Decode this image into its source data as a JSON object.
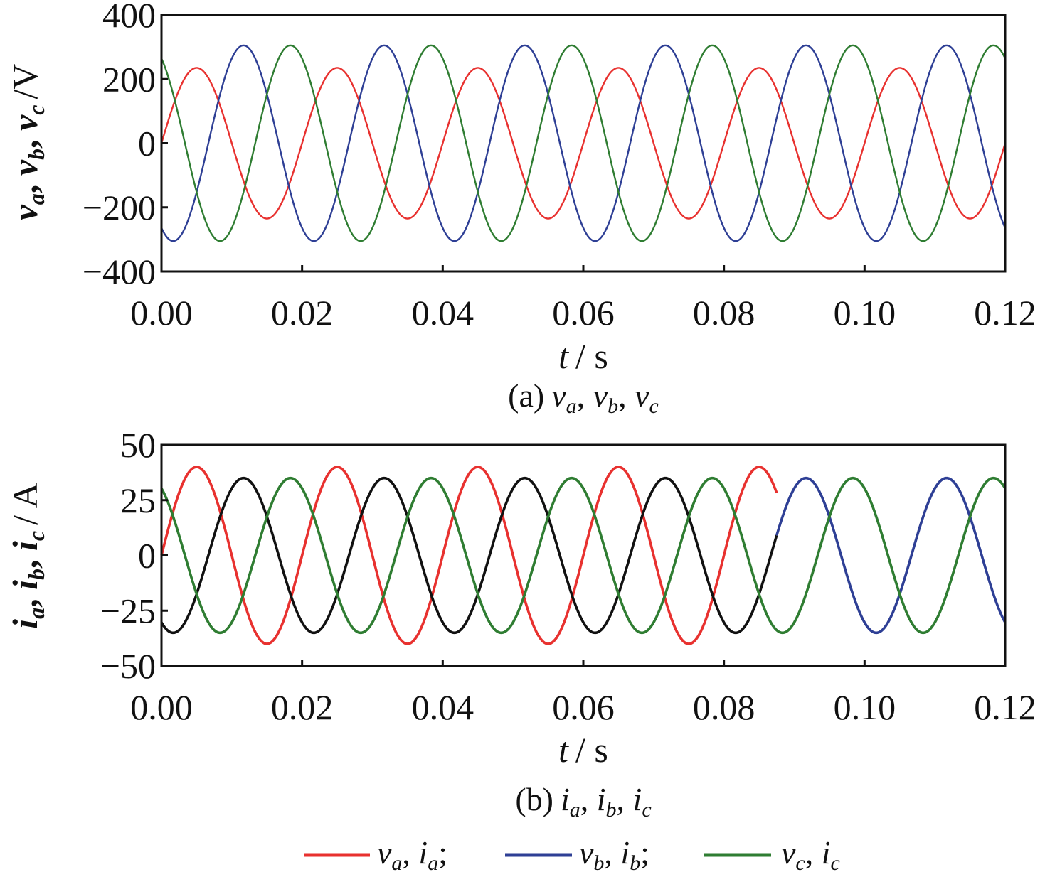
{
  "chart_data": [
    {
      "type": "line",
      "panel": "a",
      "caption_prefix": "(a)",
      "caption_vars": [
        "v",
        "a",
        "v",
        "b",
        "v",
        "c"
      ],
      "xlabel_var": "t",
      "xlabel_unit": "/ s",
      "ylabel_vars": [
        "v",
        "a",
        "v",
        "b",
        "v",
        "c"
      ],
      "ylabel_unit": "/V",
      "xlim": [
        0,
        0.12
      ],
      "ylim": [
        -400,
        400
      ],
      "xticks": [
        "0.00",
        "0.02",
        "0.04",
        "0.06",
        "0.08",
        "0.10",
        "0.12"
      ],
      "yticks": [
        "400",
        "200",
        "0",
        "−200",
        "−400"
      ],
      "ytick_values": [
        400,
        200,
        0,
        -200,
        -400
      ],
      "series": [
        {
          "name": "va",
          "color": "#e8312f",
          "amplitude": 235,
          "frequency": 50,
          "phase_deg": 0,
          "t_end": 0.12
        },
        {
          "name": "vb",
          "color": "#2e3f95",
          "amplitude": 305,
          "frequency": 50,
          "phase_deg": -120,
          "t_end": 0.12
        },
        {
          "name": "vc",
          "color": "#2f7d32",
          "amplitude": 305,
          "frequency": 50,
          "phase_deg": 120,
          "t_end": 0.12
        }
      ]
    },
    {
      "type": "line",
      "panel": "b",
      "caption_prefix": "(b)",
      "caption_vars": [
        "i",
        "a",
        "i",
        "b",
        "i",
        "c"
      ],
      "xlabel_var": "t",
      "xlabel_unit": "/ s",
      "ylabel_vars": [
        "i",
        "a",
        "i",
        "b",
        "i",
        "c"
      ],
      "ylabel_unit": "/ A",
      "xlim": [
        0,
        0.12
      ],
      "ylim": [
        -50,
        50
      ],
      "xticks": [
        "0.00",
        "0.02",
        "0.04",
        "0.06",
        "0.08",
        "0.10",
        "0.12"
      ],
      "yticks": [
        "50",
        "25",
        "0",
        "−25",
        "−50"
      ],
      "ytick_values": [
        50,
        25,
        0,
        -25,
        -50
      ],
      "series": [
        {
          "name": "ia",
          "color": "#e8312f",
          "amplitude": 40,
          "frequency": 50,
          "phase_deg": 0,
          "t_end": 0.0875
        },
        {
          "name": "ib (t < 0.0875 s)",
          "color": "#111111",
          "amplitude": 35,
          "frequency": 50,
          "phase_deg": -120,
          "t_end": 0.0875
        },
        {
          "name": "ib (t ≥ 0.0875 s)",
          "color": "#2e3f95",
          "amplitude": 35,
          "frequency": 50,
          "phase_deg": -120,
          "t_start": 0.0875,
          "t_end": 0.12
        },
        {
          "name": "ic",
          "color": "#2f7d32",
          "amplitude": 35,
          "frequency": 50,
          "phase_deg": 120,
          "t_end": 0.12
        }
      ]
    }
  ],
  "legend": [
    {
      "color": "#e8312f",
      "v": "v",
      "vsub": "a",
      "i": "i",
      "isub": "a",
      "sep": ";"
    },
    {
      "color": "#2e3f95",
      "v": "v",
      "vsub": "b",
      "i": "i",
      "isub": "b",
      "sep": ";"
    },
    {
      "color": "#2f7d32",
      "v": "v",
      "vsub": "c",
      "i": "i",
      "isub": "c",
      "sep": ""
    }
  ]
}
